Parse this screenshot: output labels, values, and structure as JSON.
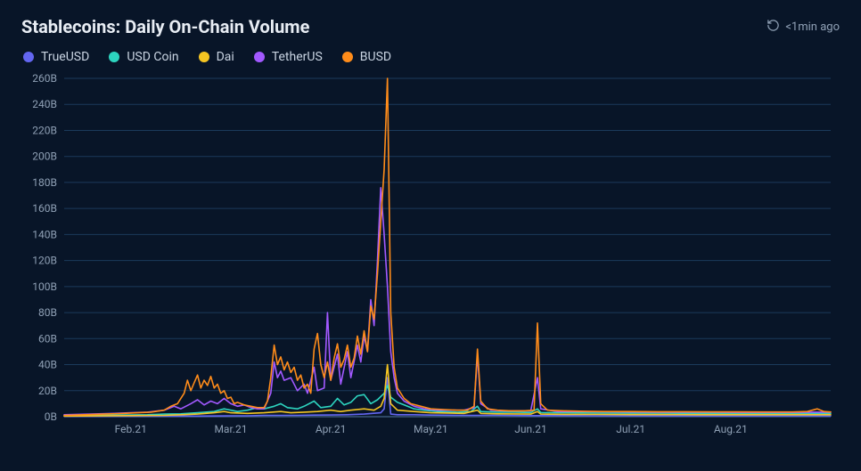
{
  "header": {
    "title": "Stablecoins: Daily On-Chain Volume",
    "refresh_label": "<1min ago"
  },
  "chart": {
    "type": "line",
    "background_color": "#081528",
    "grid_color": "#1b3a5b",
    "axis_text_color": "#8fa0b5",
    "title_fontsize": 20,
    "label_fontsize": 12,
    "legend_fontsize": 14,
    "x_axis": {
      "domain": [
        0,
        230
      ],
      "ticks": [
        {
          "pos": 20,
          "label": "Feb.21"
        },
        {
          "pos": 50,
          "label": "Mar.21"
        },
        {
          "pos": 80,
          "label": "Apr.21"
        },
        {
          "pos": 110,
          "label": "May.21"
        },
        {
          "pos": 140,
          "label": "Jun.21"
        },
        {
          "pos": 170,
          "label": "Jul.21"
        },
        {
          "pos": 200,
          "label": "Aug.21"
        }
      ]
    },
    "y_axis": {
      "domain": [
        0,
        260
      ],
      "tick_step": 20,
      "tick_suffix": "B",
      "tick_values": [
        0,
        20,
        40,
        60,
        80,
        100,
        120,
        140,
        160,
        180,
        200,
        220,
        240,
        260
      ]
    },
    "legend": [
      {
        "key": "trueusd",
        "label": "TrueUSD",
        "color": "#6366f1"
      },
      {
        "key": "usdcoin",
        "label": "USD Coin",
        "color": "#2dd4bf"
      },
      {
        "key": "dai",
        "label": "Dai",
        "color": "#f5c522"
      },
      {
        "key": "tetherus",
        "label": "TetherUS",
        "color": "#a259ff"
      },
      {
        "key": "busd",
        "label": "BUSD",
        "color": "#ff8c1a"
      }
    ],
    "series": {
      "trueusd": [
        [
          0,
          0.3
        ],
        [
          10,
          0.3
        ],
        [
          20,
          0.4
        ],
        [
          30,
          0.5
        ],
        [
          40,
          0.5
        ],
        [
          50,
          0.7
        ],
        [
          55,
          0.7
        ],
        [
          60,
          1
        ],
        [
          65,
          1
        ],
        [
          70,
          1
        ],
        [
          75,
          1.2
        ],
        [
          80,
          1.3
        ],
        [
          85,
          1.5
        ],
        [
          90,
          2
        ],
        [
          95,
          3
        ],
        [
          96,
          6
        ],
        [
          97,
          30
        ],
        [
          98,
          2
        ],
        [
          100,
          1.5
        ],
        [
          105,
          1.5
        ],
        [
          110,
          1.2
        ],
        [
          120,
          1
        ],
        [
          130,
          1
        ],
        [
          140,
          0.8
        ],
        [
          150,
          0.8
        ],
        [
          160,
          0.7
        ],
        [
          170,
          0.7
        ],
        [
          180,
          0.6
        ],
        [
          190,
          0.6
        ],
        [
          200,
          0.6
        ],
        [
          210,
          0.6
        ],
        [
          220,
          0.6
        ],
        [
          230,
          0.6
        ]
      ],
      "usdcoin": [
        [
          0,
          1
        ],
        [
          10,
          1.2
        ],
        [
          20,
          1.4
        ],
        [
          25,
          1.5
        ],
        [
          30,
          2
        ],
        [
          35,
          2.2
        ],
        [
          40,
          3
        ],
        [
          45,
          4
        ],
        [
          48,
          6
        ],
        [
          50,
          5
        ],
        [
          52,
          4
        ],
        [
          55,
          5
        ],
        [
          58,
          7
        ],
        [
          60,
          6
        ],
        [
          63,
          8
        ],
        [
          65,
          10
        ],
        [
          67,
          7
        ],
        [
          70,
          6
        ],
        [
          72,
          8
        ],
        [
          75,
          12
        ],
        [
          77,
          7
        ],
        [
          80,
          8
        ],
        [
          82,
          14
        ],
        [
          84,
          9
        ],
        [
          86,
          11
        ],
        [
          88,
          16
        ],
        [
          90,
          17
        ],
        [
          92,
          10
        ],
        [
          94,
          13
        ],
        [
          96,
          18
        ],
        [
          97,
          24
        ],
        [
          98,
          15
        ],
        [
          100,
          11
        ],
        [
          102,
          9
        ],
        [
          105,
          6
        ],
        [
          108,
          5
        ],
        [
          112,
          4
        ],
        [
          118,
          3.5
        ],
        [
          122,
          4
        ],
        [
          124,
          8
        ],
        [
          125,
          4
        ],
        [
          130,
          3.5
        ],
        [
          135,
          3.5
        ],
        [
          140,
          3.2
        ],
        [
          142,
          6
        ],
        [
          143,
          3.2
        ],
        [
          150,
          3
        ],
        [
          160,
          2.8
        ],
        [
          170,
          2.7
        ],
        [
          180,
          2.7
        ],
        [
          190,
          2.6
        ],
        [
          200,
          2.6
        ],
        [
          210,
          2.5
        ],
        [
          220,
          2.5
        ],
        [
          225,
          2.5
        ],
        [
          230,
          2.5
        ]
      ],
      "dai": [
        [
          0,
          0.5
        ],
        [
          10,
          0.6
        ],
        [
          20,
          0.8
        ],
        [
          30,
          1
        ],
        [
          35,
          1.5
        ],
        [
          40,
          2
        ],
        [
          45,
          3
        ],
        [
          48,
          4
        ],
        [
          50,
          3
        ],
        [
          55,
          2.5
        ],
        [
          60,
          3
        ],
        [
          65,
          4
        ],
        [
          68,
          3
        ],
        [
          72,
          3.5
        ],
        [
          76,
          4
        ],
        [
          80,
          5
        ],
        [
          83,
          4
        ],
        [
          86,
          5
        ],
        [
          90,
          6
        ],
        [
          93,
          5
        ],
        [
          95,
          8
        ],
        [
          96,
          14
        ],
        [
          97,
          40
        ],
        [
          98,
          10
        ],
        [
          100,
          5
        ],
        [
          105,
          4
        ],
        [
          110,
          3
        ],
        [
          120,
          2.5
        ],
        [
          124,
          5
        ],
        [
          125,
          2.5
        ],
        [
          130,
          2.2
        ],
        [
          140,
          2
        ],
        [
          142,
          4
        ],
        [
          143,
          2
        ],
        [
          150,
          1.8
        ],
        [
          160,
          1.7
        ],
        [
          170,
          1.6
        ],
        [
          180,
          1.6
        ],
        [
          190,
          1.5
        ],
        [
          200,
          1.5
        ],
        [
          210,
          1.5
        ],
        [
          220,
          1.5
        ],
        [
          230,
          1.5
        ]
      ],
      "tetherus": [
        [
          0,
          1.5
        ],
        [
          8,
          2
        ],
        [
          15,
          2.5
        ],
        [
          20,
          3
        ],
        [
          25,
          3.5
        ],
        [
          30,
          5
        ],
        [
          33,
          8
        ],
        [
          35,
          6
        ],
        [
          38,
          10
        ],
        [
          40,
          13
        ],
        [
          42,
          9
        ],
        [
          44,
          12
        ],
        [
          46,
          10
        ],
        [
          48,
          14
        ],
        [
          50,
          10
        ],
        [
          52,
          8
        ],
        [
          54,
          9
        ],
        [
          56,
          7
        ],
        [
          58,
          6
        ],
        [
          60,
          6
        ],
        [
          62,
          18
        ],
        [
          63,
          42
        ],
        [
          64,
          30
        ],
        [
          65,
          35
        ],
        [
          66,
          28
        ],
        [
          68,
          30
        ],
        [
          70,
          20
        ],
        [
          72,
          25
        ],
        [
          73,
          18
        ],
        [
          75,
          38
        ],
        [
          76,
          20
        ],
        [
          78,
          22
        ],
        [
          79,
          80
        ],
        [
          80,
          28
        ],
        [
          82,
          48
        ],
        [
          83,
          25
        ],
        [
          85,
          50
        ],
        [
          86,
          30
        ],
        [
          88,
          55
        ],
        [
          89,
          42
        ],
        [
          90,
          62
        ],
        [
          91,
          50
        ],
        [
          92,
          90
        ],
        [
          93,
          70
        ],
        [
          94,
          120
        ],
        [
          95,
          176
        ],
        [
          96,
          140
        ],
        [
          97,
          100
        ],
        [
          98,
          50
        ],
        [
          99,
          30
        ],
        [
          100,
          18
        ],
        [
          102,
          12
        ],
        [
          105,
          8
        ],
        [
          108,
          6
        ],
        [
          112,
          5
        ],
        [
          116,
          5
        ],
        [
          120,
          5
        ],
        [
          123,
          7
        ],
        [
          124,
          48
        ],
        [
          125,
          10
        ],
        [
          128,
          5
        ],
        [
          132,
          4.5
        ],
        [
          136,
          4.5
        ],
        [
          140,
          4.5
        ],
        [
          142,
          30
        ],
        [
          143,
          6
        ],
        [
          148,
          4
        ],
        [
          155,
          4
        ],
        [
          162,
          3.8
        ],
        [
          170,
          3.6
        ],
        [
          178,
          3.5
        ],
        [
          186,
          3.4
        ],
        [
          194,
          3.4
        ],
        [
          202,
          3.3
        ],
        [
          210,
          3.3
        ],
        [
          218,
          3.3
        ],
        [
          225,
          3.5
        ],
        [
          230,
          3.5
        ]
      ],
      "busd": [
        [
          0,
          1
        ],
        [
          6,
          1.5
        ],
        [
          12,
          2
        ],
        [
          18,
          2.5
        ],
        [
          22,
          3
        ],
        [
          26,
          3.5
        ],
        [
          30,
          5
        ],
        [
          32,
          8
        ],
        [
          34,
          10
        ],
        [
          36,
          18
        ],
        [
          37,
          28
        ],
        [
          38,
          20
        ],
        [
          39,
          26
        ],
        [
          40,
          32
        ],
        [
          41,
          22
        ],
        [
          42,
          28
        ],
        [
          43,
          24
        ],
        [
          44,
          31
        ],
        [
          45,
          22
        ],
        [
          46,
          25
        ],
        [
          47,
          18
        ],
        [
          48,
          20
        ],
        [
          49,
          14
        ],
        [
          50,
          15
        ],
        [
          51,
          10
        ],
        [
          52,
          11
        ],
        [
          54,
          9
        ],
        [
          56,
          8
        ],
        [
          58,
          7
        ],
        [
          60,
          7
        ],
        [
          61,
          12
        ],
        [
          62,
          30
        ],
        [
          63,
          55
        ],
        [
          64,
          40
        ],
        [
          65,
          46
        ],
        [
          66,
          36
        ],
        [
          67,
          42
        ],
        [
          68,
          34
        ],
        [
          69,
          38
        ],
        [
          70,
          28
        ],
        [
          71,
          32
        ],
        [
          72,
          22
        ],
        [
          73,
          25
        ],
        [
          74,
          18
        ],
        [
          75,
          52
        ],
        [
          76,
          64
        ],
        [
          77,
          40
        ],
        [
          78,
          30
        ],
        [
          79,
          42
        ],
        [
          80,
          28
        ],
        [
          81,
          45
        ],
        [
          82,
          56
        ],
        [
          83,
          38
        ],
        [
          84,
          44
        ],
        [
          85,
          55
        ],
        [
          86,
          38
        ],
        [
          87,
          45
        ],
        [
          88,
          62
        ],
        [
          89,
          48
        ],
        [
          90,
          66
        ],
        [
          91,
          50
        ],
        [
          92,
          85
        ],
        [
          93,
          75
        ],
        [
          94,
          110
        ],
        [
          95,
          150
        ],
        [
          96,
          190
        ],
        [
          97,
          260
        ],
        [
          98,
          80
        ],
        [
          99,
          38
        ],
        [
          100,
          22
        ],
        [
          102,
          14
        ],
        [
          104,
          10
        ],
        [
          107,
          8
        ],
        [
          110,
          6
        ],
        [
          114,
          5.5
        ],
        [
          118,
          5
        ],
        [
          121,
          5
        ],
        [
          123,
          8
        ],
        [
          124,
          52
        ],
        [
          125,
          12
        ],
        [
          127,
          6
        ],
        [
          130,
          5
        ],
        [
          134,
          4.5
        ],
        [
          138,
          4.5
        ],
        [
          141,
          5
        ],
        [
          142,
          72
        ],
        [
          143,
          10
        ],
        [
          145,
          5
        ],
        [
          150,
          4.5
        ],
        [
          156,
          4.2
        ],
        [
          162,
          4
        ],
        [
          170,
          4
        ],
        [
          178,
          3.8
        ],
        [
          186,
          3.8
        ],
        [
          194,
          3.7
        ],
        [
          202,
          3.7
        ],
        [
          210,
          3.6
        ],
        [
          218,
          3.6
        ],
        [
          223,
          4
        ],
        [
          226,
          6
        ],
        [
          228,
          4
        ],
        [
          230,
          3.6
        ]
      ]
    }
  }
}
